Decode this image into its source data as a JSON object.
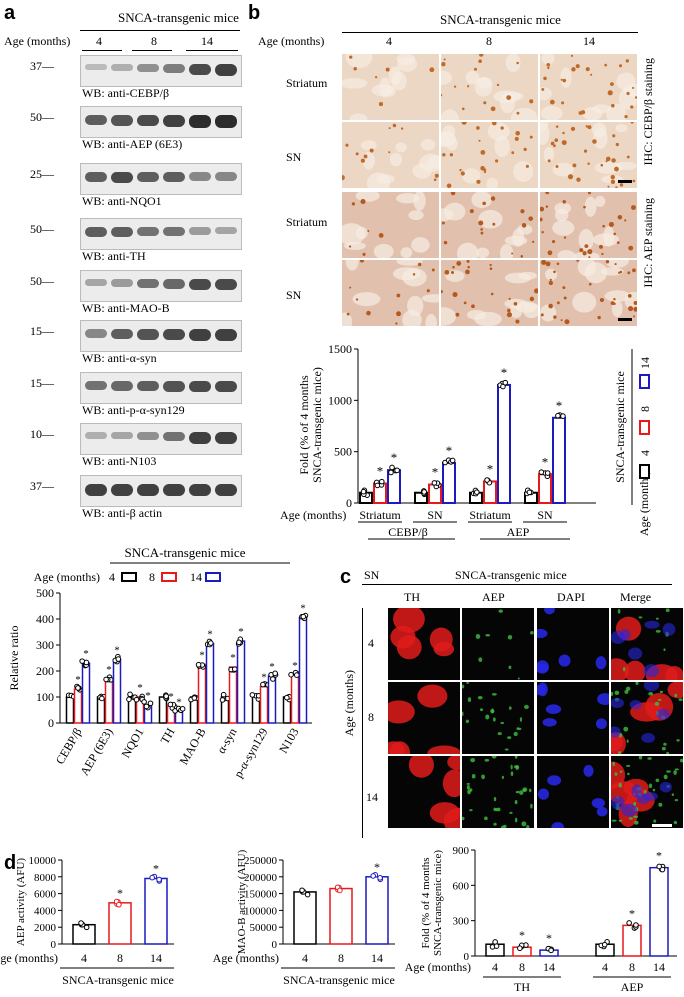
{
  "panel_a": {
    "letter": "a",
    "header": "SNCA-transgenic mice",
    "age_label": "Age (months)",
    "ages": [
      "4",
      "8",
      "14"
    ],
    "blots": [
      {
        "mw": "37",
        "label": "WB: anti-CEBP/β"
      },
      {
        "mw": "50",
        "label": "WB: anti-AEP (6E3)"
      },
      {
        "mw": "25",
        "label": "WB: anti-NQO1"
      },
      {
        "mw": "50",
        "label": "WB: anti-TH"
      },
      {
        "mw": "50",
        "label": "WB: anti-MAO-B"
      },
      {
        "mw": "15",
        "label": "WB: anti-α-syn"
      },
      {
        "mw": "15",
        "label": "WB: anti-p-α-syn129"
      },
      {
        "mw": "10",
        "label": "WB: anti-N103"
      },
      {
        "mw": "37",
        "label": "WB: anti-β actin"
      }
    ]
  },
  "panel_b": {
    "letter": "b",
    "header": "SNCA-transgenic mice",
    "age_label": "Age (months)",
    "ages": [
      "4",
      "8",
      "14"
    ],
    "rows": [
      "Striatum",
      "SN",
      "Striatum",
      "SN"
    ],
    "stain_top": "IHC: CEBP/β staining",
    "stain_bottom": "IHC: AEP staining"
  },
  "panel_c": {
    "letter": "c",
    "region": "SN",
    "header": "SNCA-transgenic mice",
    "columns": [
      "TH",
      "AEP",
      "DAPI",
      "Merge"
    ],
    "age_label": "Age (months)",
    "ages": [
      "4",
      "8",
      "14"
    ]
  },
  "panel_d": {
    "letter": "d"
  },
  "chart_data": [
    {
      "id": "b_bar",
      "type": "bar",
      "ylabel": "Fold (% of 4 months SNCA-transgenic mice)",
      "ylim": [
        0,
        1500
      ],
      "yticks": [
        0,
        500,
        1000,
        1500
      ],
      "x_row_label": "Age (months)",
      "groups": [
        "Striatum",
        "SN",
        "Striatum",
        "SN"
      ],
      "supergroups": [
        "CEBP/β",
        "AEP"
      ],
      "legend_title": "SNCA-transgenic mice",
      "legend_age_label": "Age (months)",
      "series": [
        {
          "name": "4",
          "color": "#000000",
          "values": [
            100,
            100,
            100,
            100
          ]
        },
        {
          "name": "8",
          "color": "#e8191c",
          "values": [
            190,
            180,
            210,
            280
          ]
        },
        {
          "name": "14",
          "color": "#1b1bbf",
          "values": [
            320,
            390,
            1150,
            830
          ]
        }
      ],
      "significance": "*"
    },
    {
      "id": "a_bar",
      "type": "bar",
      "title": "SNCA-transgenic mice",
      "ylabel": "Relative ratio",
      "ylim": [
        0,
        500
      ],
      "yticks": [
        0,
        100,
        200,
        300,
        400,
        500
      ],
      "legend_age_label": "Age (months)",
      "categories": [
        "CEBP/β",
        "AEP (6E3)",
        "NQO1",
        "TH",
        "MAO-B",
        "α-syn",
        "p-α-syn129",
        "N103"
      ],
      "series": [
        {
          "name": "4",
          "color": "#000000",
          "values": [
            100,
            100,
            100,
            100,
            100,
            100,
            100,
            100
          ]
        },
        {
          "name": "8",
          "color": "#e8191c",
          "values": [
            130,
            170,
            100,
            65,
            225,
            215,
            140,
            185
          ]
        },
        {
          "name": "14",
          "color": "#1b1bbf",
          "values": [
            230,
            245,
            70,
            45,
            305,
            315,
            180,
            405
          ]
        }
      ],
      "significance": "*"
    },
    {
      "id": "d_aep",
      "type": "bar",
      "ylabel": "AEP activity (AFU)",
      "ylim": [
        0,
        10000
      ],
      "yticks": [
        0,
        2000,
        4000,
        6000,
        8000,
        10000
      ],
      "x_row_label": "Age (months)",
      "categories": [
        "4",
        "8",
        "14"
      ],
      "values": [
        2300,
        4900,
        7800
      ],
      "colors": [
        "#000000",
        "#e8191c",
        "#1b1bbf"
      ],
      "xlabel": "SNCA-transgenic mice",
      "significance": "*"
    },
    {
      "id": "d_maob",
      "type": "bar",
      "ylabel": "MAO-B activity (AFU)",
      "ylim": [
        0,
        250000
      ],
      "yticks": [
        0,
        50000,
        100000,
        150000,
        200000,
        250000
      ],
      "x_row_label": "Age (months)",
      "categories": [
        "4",
        "8",
        "14"
      ],
      "values": [
        155000,
        165000,
        200000
      ],
      "colors": [
        "#000000",
        "#e8191c",
        "#1b1bbf"
      ],
      "xlabel": "SNCA-transgenic mice",
      "significance": "*"
    },
    {
      "id": "d_fold",
      "type": "bar",
      "ylabel": "Fold (% of 4 months SNCA-transgenic mice)",
      "ylim": [
        0,
        900
      ],
      "yticks": [
        0,
        300,
        600,
        900
      ],
      "x_row_label": "Age (months)",
      "groups": [
        "TH",
        "AEP"
      ],
      "categories": [
        "4",
        "8",
        "14"
      ],
      "series": [
        {
          "name": "TH",
          "values": [
            100,
            75,
            50
          ]
        },
        {
          "name": "AEP",
          "values": [
            100,
            260,
            750
          ]
        }
      ],
      "colors": [
        "#000000",
        "#e8191c",
        "#1b1bbf"
      ],
      "significance": "*"
    }
  ]
}
